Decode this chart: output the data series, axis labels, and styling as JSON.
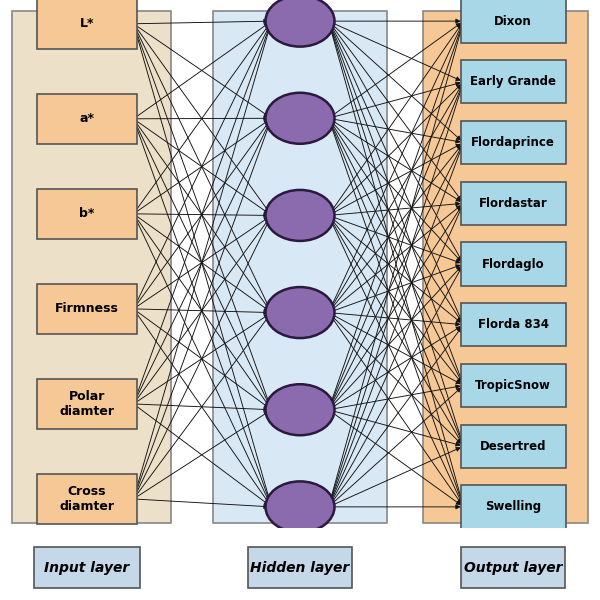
{
  "input_labels": [
    "L*",
    "a*",
    "b*",
    "Firmness",
    "Polar\ndiamter",
    "Cross\ndiamter"
  ],
  "hidden_count": 6,
  "output_labels": [
    "Dixon",
    "Early Grande",
    "Flordaprince",
    "Flordastar",
    "Flordaglo",
    "Florda 834",
    "TropicSnow",
    "Desertred",
    "Swelling"
  ],
  "node_color": "#8b6aad",
  "node_edgecolor": "#2a1a40",
  "box_facecolor_input": "#f5c896",
  "box_facecolor_output": "#a8d8e8",
  "box_edgecolor": "#555555",
  "layer_bg_input": "#ede0c8",
  "layer_bg_hidden": "#d8e8f5",
  "layer_bg_output": "#f5c896",
  "connection_color": "#111111",
  "layer_labels": [
    "Input layer",
    "Hidden layer",
    "Output layer"
  ],
  "layer_label_bg": "#c5d8ea",
  "layer_label_edgecolor": "#555555",
  "fig_bg": "#ffffff"
}
